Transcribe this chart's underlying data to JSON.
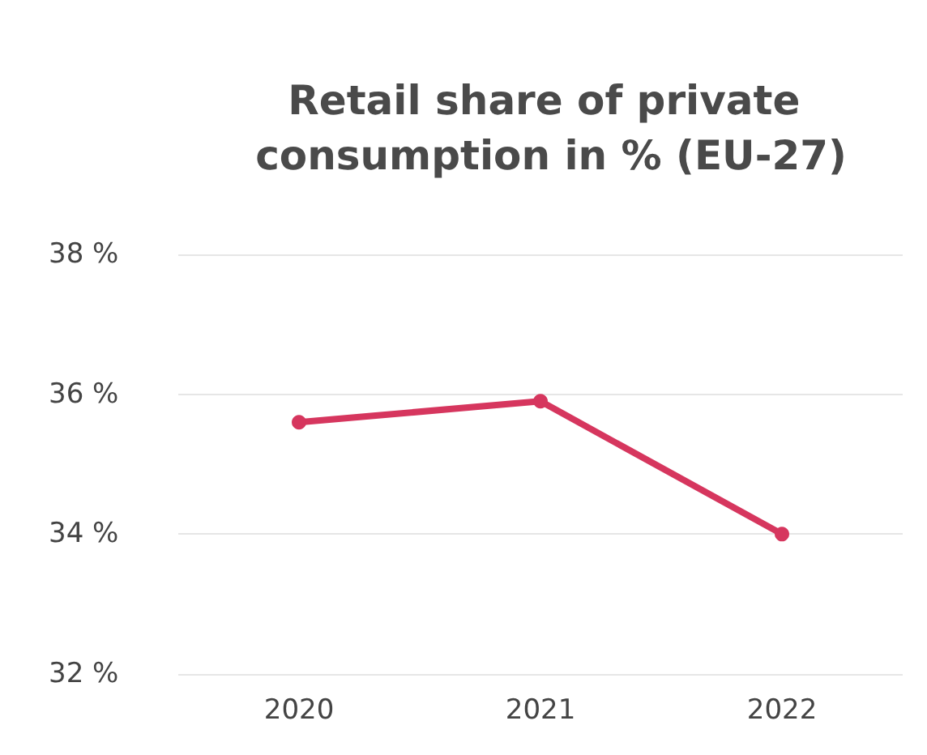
{
  "chart_data": {
    "type": "line",
    "title": "Retail share of private consumption in % (EU-27)",
    "categories": [
      "2020",
      "2021",
      "2022"
    ],
    "series": [
      {
        "color": "#d6365e",
        "values": [
          35.6,
          35.9,
          34.0
        ]
      }
    ],
    "ylim": [
      32,
      38
    ],
    "yticks": [
      {
        "value": 32,
        "label": "32 %"
      },
      {
        "value": 34,
        "label": "34 %"
      },
      {
        "value": 36,
        "label": "36 %"
      },
      {
        "value": 38,
        "label": "38 %"
      }
    ],
    "grid": "y",
    "marker": "circle",
    "line_style": "solid"
  }
}
